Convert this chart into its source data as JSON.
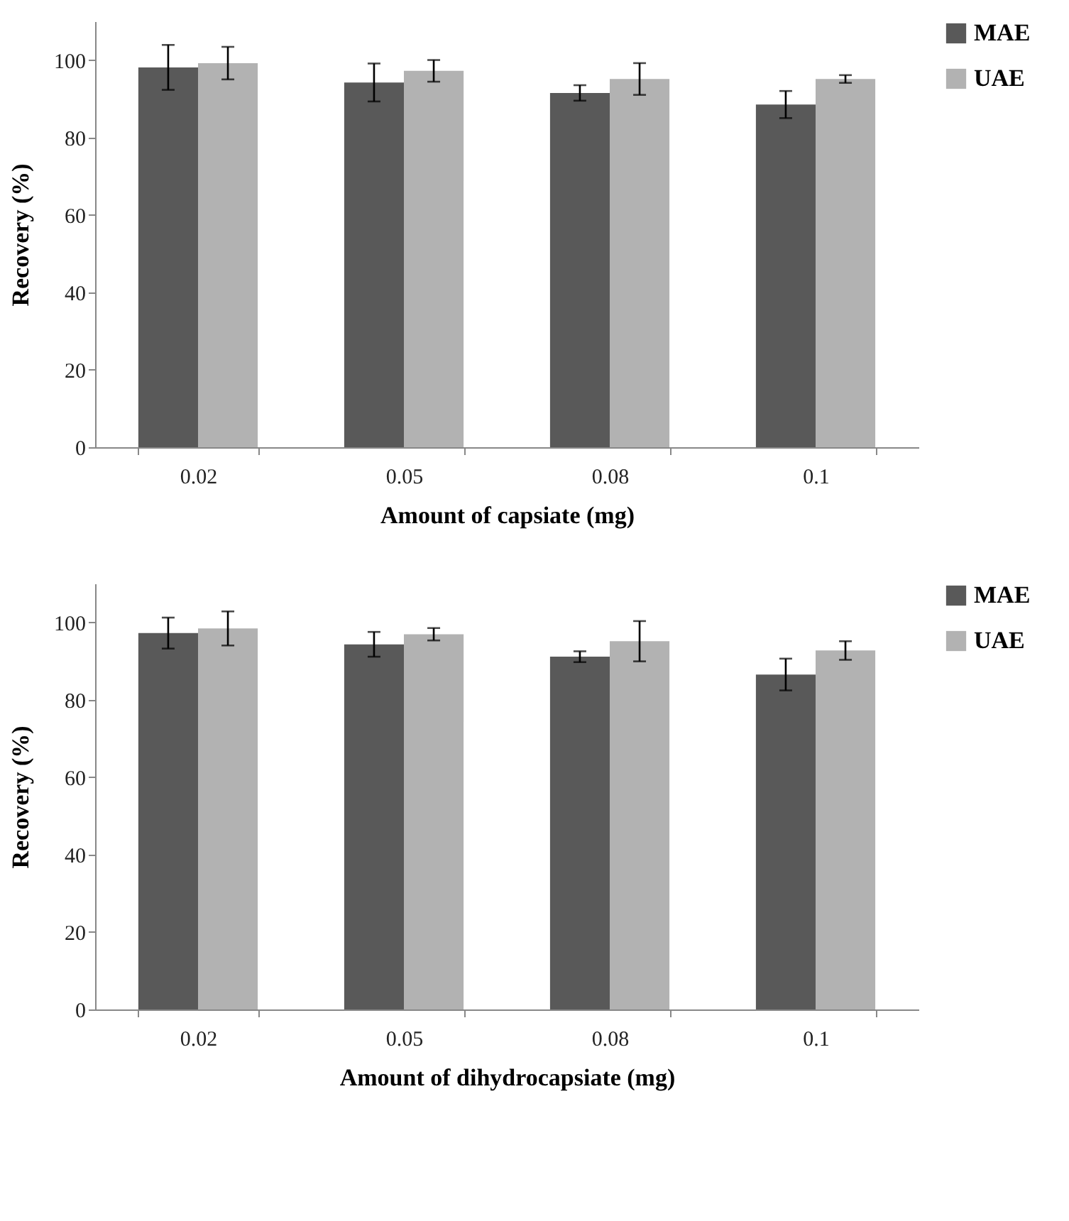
{
  "chart_data": [
    {
      "type": "bar",
      "xlabel": "Amount of capsiate (mg)",
      "ylabel": "Recovery (%)",
      "categories": [
        "0.02",
        "0.05",
        "0.08",
        "0.1"
      ],
      "series": [
        {
          "name": "MAE",
          "color": "#595959",
          "values": [
            98.1,
            94.2,
            91.5,
            88.5
          ],
          "errors": [
            5.8,
            4.9,
            2,
            3.5
          ]
        },
        {
          "name": "UAE",
          "color": "#b2b2b2",
          "values": [
            99.2,
            97.2,
            95.1,
            95.1
          ],
          "errors": [
            4.2,
            2.8,
            4.1,
            1
          ]
        }
      ],
      "ylim": [
        0,
        110
      ],
      "yticks": [
        0,
        20,
        40,
        60,
        80,
        100
      ],
      "grid": false,
      "legend": "right"
    },
    {
      "type": "bar",
      "xlabel": "Amount of dihydrocapsiate (mg)",
      "ylabel": "Recovery (%)",
      "categories": [
        "0.02",
        "0.05",
        "0.08",
        "0.1"
      ],
      "series": [
        {
          "name": "MAE",
          "color": "#595959",
          "values": [
            97.2,
            94.3,
            91.1,
            86.5
          ],
          "errors": [
            4,
            3.2,
            1.4,
            4.1
          ]
        },
        {
          "name": "UAE",
          "color": "#b2b2b2",
          "values": [
            98.4,
            96.9,
            95.1,
            92.7
          ],
          "errors": [
            4.4,
            1.6,
            5.2,
            2.4
          ]
        }
      ],
      "ylim": [
        0,
        110
      ],
      "yticks": [
        0,
        20,
        40,
        60,
        80,
        100
      ],
      "grid": false,
      "legend": "right"
    }
  ]
}
